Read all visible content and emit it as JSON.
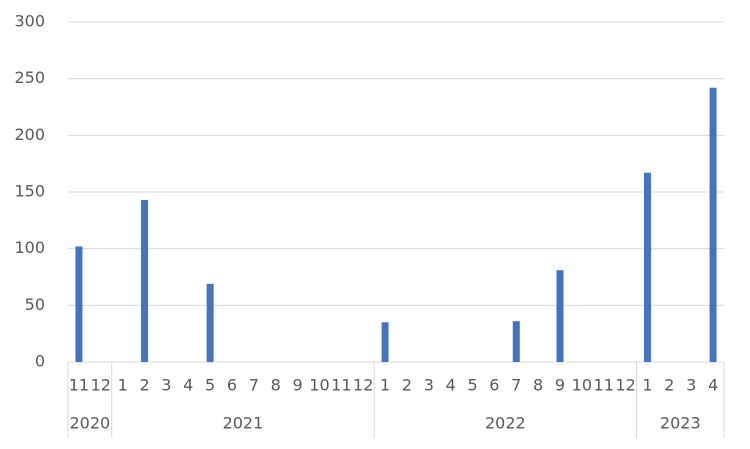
{
  "chart_data": {
    "type": "bar",
    "groups": [
      {
        "name": "2020",
        "categories": [
          "11",
          "12"
        ]
      },
      {
        "name": "2021",
        "categories": [
          "1",
          "2",
          "3",
          "4",
          "5",
          "6",
          "7",
          "8",
          "9",
          "10",
          "11",
          "12"
        ]
      },
      {
        "name": "2022",
        "categories": [
          "1",
          "2",
          "3",
          "4",
          "5",
          "6",
          "7",
          "8",
          "9",
          "10",
          "11",
          "12"
        ]
      },
      {
        "name": "2023",
        "categories": [
          "1",
          "2",
          "3",
          "4"
        ]
      }
    ],
    "values": [
      102,
      0,
      0,
      143,
      0,
      0,
      69,
      0,
      0,
      0,
      0,
      0,
      0,
      0,
      35,
      0,
      0,
      0,
      0,
      0,
      36,
      0,
      81,
      0,
      0,
      0,
      167,
      0,
      0,
      242
    ],
    "color": "#4472c4",
    "ylim": [
      0,
      300
    ],
    "yticks": [
      0,
      50,
      100,
      150,
      200,
      250,
      300
    ],
    "grid": true
  }
}
